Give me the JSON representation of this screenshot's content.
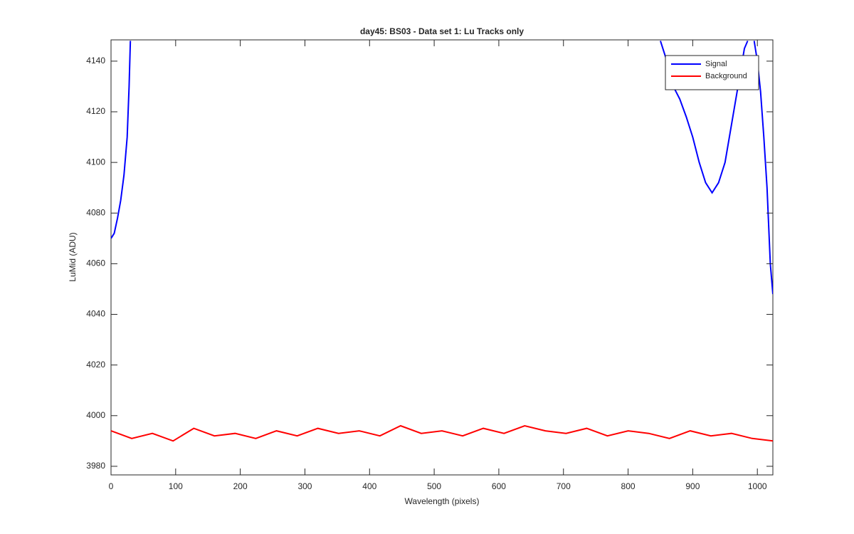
{
  "chart_data": {
    "type": "line",
    "title": "day45: BS03 - Data set 1: Lu Tracks only",
    "x_label": "Wavelength (pixels)",
    "y_label": "LuMid (ADU)",
    "xlim": [
      0,
      1024
    ],
    "ylim": [
      3976.6,
      4148.4
    ],
    "xticks": [
      0,
      100,
      200,
      300,
      400,
      500,
      600,
      700,
      800,
      900,
      1000
    ],
    "yticks": [
      3980,
      4000,
      4020,
      4040,
      4060,
      4080,
      4100,
      4120,
      4140
    ],
    "grid": false,
    "legend": "top-right",
    "series": [
      {
        "name": "Signal",
        "color": "#0000ff",
        "x": [
          0,
          5,
          10,
          15,
          20,
          25,
          28,
          30,
          440,
          850,
          860,
          870,
          880,
          890,
          900,
          910,
          920,
          930,
          940,
          950,
          960,
          970,
          980,
          985,
          990,
          995,
          1000,
          1005,
          1010,
          1015,
          1020,
          1024
        ],
        "values": [
          4070,
          4072,
          4078,
          4085,
          4095,
          4110,
          4130,
          4148,
          null,
          4148,
          4140,
          4130,
          4125,
          4118,
          4110,
          4100,
          4092,
          4088,
          4092,
          4100,
          4115,
          4130,
          4145,
          4148,
          null,
          4148,
          4140,
          4128,
          4110,
          4090,
          4060,
          4048
        ]
      },
      {
        "name": "Background",
        "color": "#ff0000",
        "x": [
          0,
          32,
          64,
          96,
          128,
          160,
          192,
          224,
          256,
          288,
          320,
          352,
          384,
          416,
          448,
          480,
          512,
          544,
          576,
          608,
          640,
          672,
          704,
          736,
          768,
          800,
          832,
          864,
          896,
          928,
          960,
          992,
          1024
        ],
        "values": [
          3994,
          3991,
          3993,
          3990,
          3995,
          3992,
          3993,
          3991,
          3994,
          3992,
          3995,
          3993,
          3994,
          3992,
          3996,
          3993,
          3994,
          3992,
          3995,
          3993,
          3996,
          3994,
          3993,
          3995,
          3992,
          3994,
          3993,
          3991,
          3994,
          3992,
          3993,
          3991,
          3990
        ]
      }
    ]
  }
}
